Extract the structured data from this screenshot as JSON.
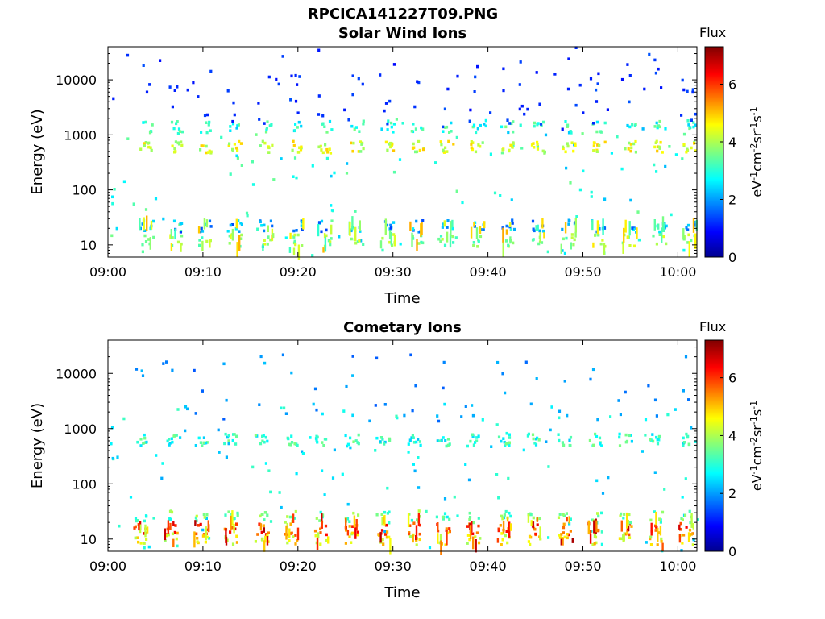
{
  "figure": {
    "title": "RPCICA141227T09.PNG"
  },
  "chart_data": [
    {
      "type": "heatmap",
      "title": "Solar Wind Ions",
      "xlabel": "Time",
      "ylabel": "Energy (eV)",
      "x_ticks": [
        "09:00",
        "09:10",
        "09:20",
        "09:30",
        "09:40",
        "09:50",
        "10:00"
      ],
      "x_range": [
        "09:00",
        "10:02"
      ],
      "y_scale": "log",
      "y_range": [
        6,
        40000
      ],
      "y_ticks": [
        10,
        100,
        1000,
        10000
      ],
      "y_tick_labels": [
        "10",
        "100",
        "1000",
        "10000"
      ],
      "colorbar": {
        "label": "Flux",
        "units_text": "eV-1cm-2sr-1s-1",
        "range": [
          0,
          7.3
        ],
        "ticks": [
          0,
          2,
          4,
          6
        ],
        "tick_labels": [
          "0",
          "2",
          "4",
          "6"
        ]
      },
      "grid": false,
      "bursts_minutes": [
        3.7,
        6.7,
        9.9,
        13.0,
        16.3,
        19.4,
        22.5,
        25.8,
        29.1,
        32.2,
        35.3,
        38.5,
        41.7,
        44.9,
        48.1,
        51.3,
        54.5,
        57.7,
        60.8
      ],
      "bands": [
        {
          "energy_eV": 600,
          "log_flux": 4.3
        },
        {
          "energy_eV": 1400,
          "log_flux": 3.0
        },
        {
          "energy_eV": 12,
          "log_flux": 3.8
        },
        {
          "energy_eV": 22,
          "log_flux": 2.0
        }
      ]
    },
    {
      "type": "heatmap",
      "title": "Cometary Ions",
      "xlabel": "Time",
      "ylabel": "Energy (eV)",
      "x_ticks": [
        "09:00",
        "09:10",
        "09:20",
        "09:30",
        "09:40",
        "09:50",
        "10:00"
      ],
      "x_range": [
        "09:00",
        "10:02"
      ],
      "y_scale": "log",
      "y_range": [
        6,
        40000
      ],
      "y_ticks": [
        10,
        100,
        1000,
        10000
      ],
      "y_tick_labels": [
        "10",
        "100",
        "1000",
        "10000"
      ],
      "colorbar": {
        "label": "Flux",
        "units_text": "eV-1cm-2sr-1s-1",
        "range": [
          0,
          7.3
        ],
        "ticks": [
          0,
          2,
          4,
          6
        ],
        "tick_labels": [
          "0",
          "2",
          "4",
          "6"
        ]
      },
      "grid": false,
      "bursts_minutes": [
        3.0,
        6.2,
        9.4,
        12.6,
        15.8,
        18.9,
        22.1,
        25.3,
        28.6,
        31.8,
        34.9,
        38.1,
        41.3,
        44.5,
        47.7,
        50.9,
        54.1,
        57.3,
        60.5
      ],
      "bands": [
        {
          "energy_eV": 620,
          "log_flux": 3.0
        },
        {
          "energy_eV": 15,
          "log_flux": 5.8
        },
        {
          "energy_eV": 10,
          "log_flux": 4.5
        },
        {
          "energy_eV": 25,
          "log_flux": 3.5
        }
      ]
    }
  ]
}
